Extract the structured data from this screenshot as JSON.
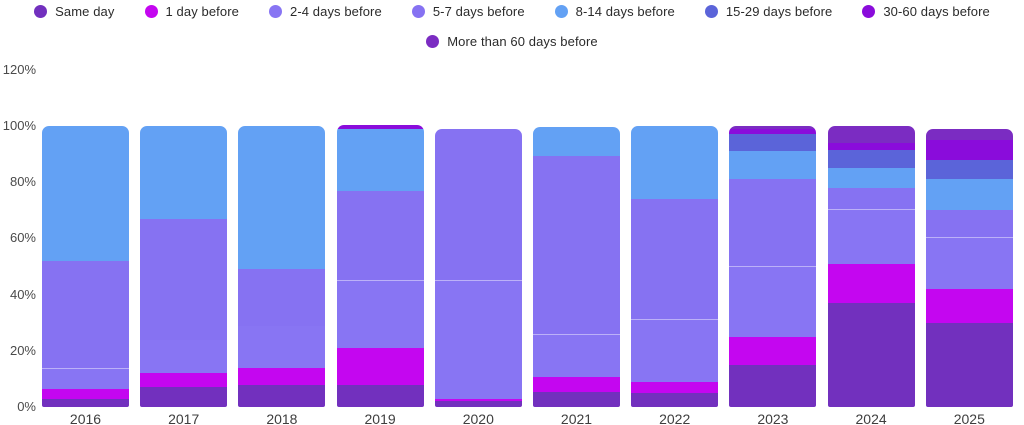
{
  "chart_data": {
    "type": "bar",
    "stacked": true,
    "unit": "percent",
    "title": "",
    "xlabel": "",
    "ylabel": "",
    "ylim": [
      0,
      120
    ],
    "grid": false,
    "legend_position": "top",
    "y_ticks": [
      {
        "value": 0,
        "label": "0%"
      },
      {
        "value": 20,
        "label": "20%"
      },
      {
        "value": 40,
        "label": "40%"
      },
      {
        "value": 60,
        "label": "60%"
      },
      {
        "value": 80,
        "label": "80%"
      },
      {
        "value": 100,
        "label": "100%"
      },
      {
        "value": 120,
        "label": "120%"
      }
    ],
    "categories": [
      "2016",
      "2017",
      "2018",
      "2019",
      "2020",
      "2021",
      "2022",
      "2023",
      "2024",
      "2025"
    ],
    "series_order": "bottom-to-top",
    "series": [
      {
        "name": "Same day",
        "color": "#7230BE",
        "values": [
          3,
          7,
          8,
          8,
          2,
          5.5,
          5,
          15,
          37,
          30
        ]
      },
      {
        "name": "1 day before",
        "color": "#C406F0",
        "values": [
          3.5,
          5,
          6,
          13,
          1,
          5,
          4,
          10,
          14,
          12
        ]
      },
      {
        "name": "2-4 days before",
        "color": "#8875F3",
        "values": [
          7,
          12,
          15,
          24,
          42,
          15,
          22,
          25,
          19,
          18
        ]
      },
      {
        "name": "5-7 days before",
        "color": "#8672F2",
        "values": [
          38.5,
          43,
          20,
          32,
          54,
          64,
          43,
          31,
          8,
          10
        ]
      },
      {
        "name": "8-14 days before",
        "color": "#63A1F4",
        "values": [
          48,
          33,
          51,
          22,
          0,
          10,
          26,
          10,
          7,
          11
        ]
      },
      {
        "name": "15-29 days before",
        "color": "#5B64D9",
        "values": [
          0,
          0,
          0,
          0,
          0,
          0,
          0,
          6,
          6.5,
          7
        ]
      },
      {
        "name": "30-60 days before",
        "color": "#8A0CDB",
        "values": [
          0,
          0,
          0,
          1.5,
          0,
          0,
          0,
          2,
          2.5,
          7
        ]
      },
      {
        "name": "More than 60 days before",
        "color": "#7B2CC2",
        "values": [
          0,
          0,
          0,
          0,
          0,
          0,
          0,
          1,
          6,
          4
        ]
      }
    ],
    "divider_between_2_4_and_5_7": [
      true,
      false,
      false,
      true,
      true,
      true,
      true,
      true,
      true,
      true
    ],
    "legend_rows": [
      [
        0,
        1,
        2,
        3,
        4,
        5,
        6
      ],
      [
        7
      ]
    ]
  }
}
